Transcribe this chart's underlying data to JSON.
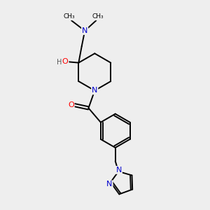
{
  "background_color": "#eeeeee",
  "bond_color": "#000000",
  "atom_colors": {
    "N": "#0000cc",
    "O": "#ff0000",
    "C": "#000000",
    "H": "#555555"
  }
}
